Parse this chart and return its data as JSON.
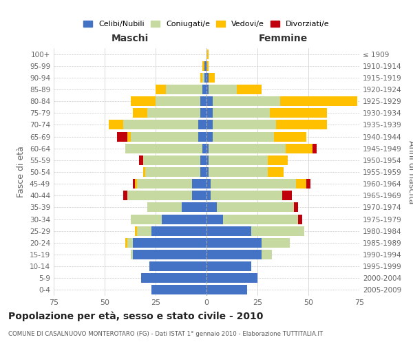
{
  "age_groups": [
    "0-4",
    "5-9",
    "10-14",
    "15-19",
    "20-24",
    "25-29",
    "30-34",
    "35-39",
    "40-44",
    "45-49",
    "50-54",
    "55-59",
    "60-64",
    "65-69",
    "70-74",
    "75-79",
    "80-84",
    "85-89",
    "90-94",
    "95-99",
    "100+"
  ],
  "birth_years": [
    "2005-2009",
    "2000-2004",
    "1995-1999",
    "1990-1994",
    "1985-1989",
    "1980-1984",
    "1975-1979",
    "1970-1974",
    "1965-1969",
    "1960-1964",
    "1955-1959",
    "1950-1954",
    "1945-1949",
    "1940-1944",
    "1935-1939",
    "1930-1934",
    "1925-1929",
    "1920-1924",
    "1915-1919",
    "1910-1914",
    "≤ 1909"
  ],
  "colors": {
    "celibi": "#4472c4",
    "coniugati": "#c5d9a0",
    "vedovi": "#ffc000",
    "divorziati": "#c0000b"
  },
  "maschi": {
    "celibi": [
      27,
      32,
      28,
      36,
      36,
      27,
      22,
      12,
      7,
      7,
      3,
      3,
      2,
      4,
      4,
      3,
      3,
      2,
      1,
      1,
      0
    ],
    "coniugati": [
      0,
      0,
      0,
      1,
      3,
      7,
      15,
      17,
      32,
      27,
      27,
      28,
      38,
      33,
      37,
      26,
      22,
      18,
      1,
      0,
      0
    ],
    "vedovi": [
      0,
      0,
      0,
      0,
      1,
      1,
      0,
      0,
      0,
      1,
      1,
      0,
      0,
      2,
      7,
      7,
      12,
      5,
      1,
      1,
      0
    ],
    "divorziati": [
      0,
      0,
      0,
      0,
      0,
      0,
      0,
      0,
      2,
      1,
      0,
      2,
      0,
      5,
      0,
      0,
      0,
      0,
      0,
      0,
      0
    ]
  },
  "femmine": {
    "celibi": [
      20,
      25,
      22,
      27,
      27,
      22,
      8,
      5,
      2,
      2,
      1,
      1,
      1,
      3,
      3,
      3,
      3,
      1,
      1,
      0,
      0
    ],
    "coniugati": [
      0,
      0,
      0,
      5,
      14,
      26,
      37,
      38,
      35,
      42,
      29,
      29,
      38,
      30,
      31,
      28,
      33,
      14,
      0,
      0,
      0
    ],
    "vedovi": [
      0,
      0,
      0,
      0,
      0,
      0,
      0,
      0,
      0,
      5,
      8,
      10,
      13,
      16,
      25,
      28,
      38,
      12,
      3,
      1,
      1
    ],
    "divorziati": [
      0,
      0,
      0,
      0,
      0,
      0,
      2,
      2,
      5,
      2,
      0,
      0,
      2,
      0,
      0,
      0,
      0,
      0,
      0,
      0,
      0
    ]
  },
  "xlim": 75,
  "title": "Popolazione per età, sesso e stato civile - 2010",
  "subtitle": "COMUNE DI CASALNUOVO MONTEROTARO (FG) - Dati ISTAT 1° gennaio 2010 - Elaborazione TUTTITALIA.IT",
  "ylabel_left": "Fasce di età",
  "ylabel_right": "Anni di nascita",
  "xlabel_maschi": "Maschi",
  "xlabel_femmine": "Femmine",
  "legend_labels": [
    "Celibi/Nubili",
    "Coniugati/e",
    "Vedovi/e",
    "Divorziati/e"
  ],
  "background_color": "#ffffff",
  "grid_color": "#cccccc"
}
